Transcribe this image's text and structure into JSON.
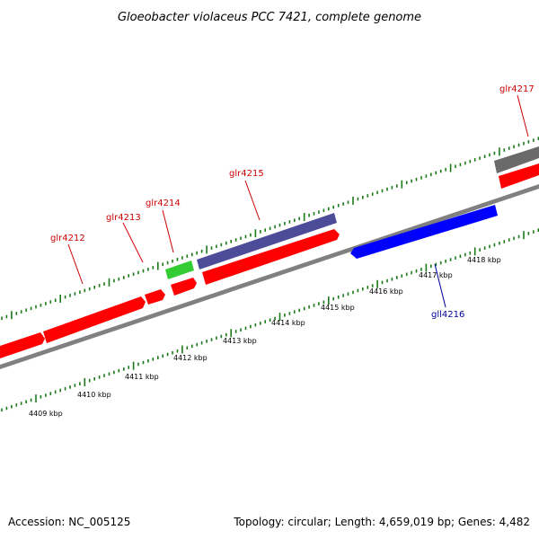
{
  "title": "Gloeobacter violaceus PCC 7421, complete genome",
  "footer": {
    "accession": "Accession: NC_005125",
    "summary": "Topology: circular; Length: 4,659,019 bp; Genes: 4,482"
  },
  "colors": {
    "forward_gene": "#ff0000",
    "reverse_gene": "#0000ff",
    "rna_gene": "#33cc33",
    "other_feature": "#4c4c99",
    "gray_feature": "#6a6a6a",
    "backbone": "#808080",
    "tick": "#1a7a1a",
    "forward_label": "#cc0000",
    "reverse_label": "#000099"
  },
  "kbp_labels": [
    "4409 kbp",
    "4410 kbp",
    "4411 kbp",
    "4412 kbp",
    "4413 kbp",
    "4414 kbp",
    "4415 kbp",
    "4416 kbp",
    "4417 kbp",
    "4418 kbp"
  ],
  "gene_labels": [
    {
      "id": "glr4212",
      "strand": "forward"
    },
    {
      "id": "glr4213",
      "strand": "forward"
    },
    {
      "id": "glr4214",
      "strand": "forward"
    },
    {
      "id": "glr4215",
      "strand": "forward"
    },
    {
      "id": "glr4217",
      "strand": "forward"
    },
    {
      "id": "gll4216",
      "strand": "reverse"
    }
  ]
}
